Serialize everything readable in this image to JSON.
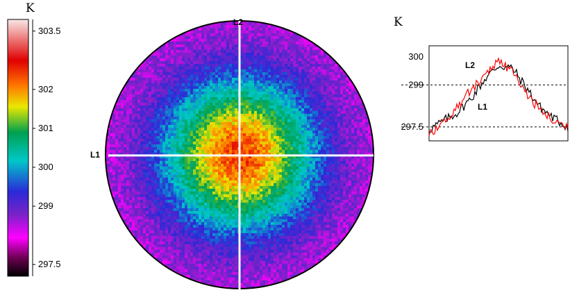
{
  "chart_data": [
    {
      "type": "heatmap",
      "unit_label": "K",
      "colorbar": {
        "range": [
          297.2,
          303.8
        ],
        "ticks": [
          303.5,
          302,
          301,
          300,
          299,
          297.5
        ],
        "tick_labels": [
          "303.5",
          "302",
          "301",
          "300",
          "299",
          "297.5"
        ]
      },
      "field": {
        "shape": "circular",
        "center_value": 302.4,
        "edge_value": 298.4,
        "noise": 0.35
      },
      "lines": [
        {
          "name": "L1",
          "orientation": "horizontal"
        },
        {
          "name": "L2",
          "orientation": "vertical"
        }
      ]
    },
    {
      "type": "line",
      "unit_label": "K",
      "ylim": [
        297.0,
        300.4
      ],
      "yticks": [
        300,
        299,
        297.5
      ],
      "ytick_labels": [
        "300",
        "299",
        "297.5"
      ],
      "grid_dashed_at": [
        299,
        297.5
      ],
      "x": [
        0,
        0.1,
        0.2,
        0.3,
        0.4,
        0.5,
        0.6,
        0.7,
        0.8,
        0.9,
        1.0
      ],
      "series": [
        {
          "name": "L2",
          "color": "#000000",
          "values": [
            297.4,
            297.7,
            298.0,
            298.5,
            299.2,
            299.7,
            299.6,
            298.9,
            298.2,
            297.8,
            297.5
          ]
        },
        {
          "name": "L1",
          "color": "#ff0000",
          "values": [
            297.3,
            297.6,
            298.2,
            298.8,
            299.4,
            299.8,
            299.5,
            298.7,
            298.1,
            297.7,
            297.5
          ]
        }
      ]
    }
  ],
  "colors": {
    "colormap": [
      "#000000",
      "#ff00ff",
      "#6b1fc4",
      "#2a2ad8",
      "#00c8c8",
      "#00a050",
      "#e8e800",
      "#ff7a00",
      "#e00000",
      "#f2c8c8"
    ]
  }
}
